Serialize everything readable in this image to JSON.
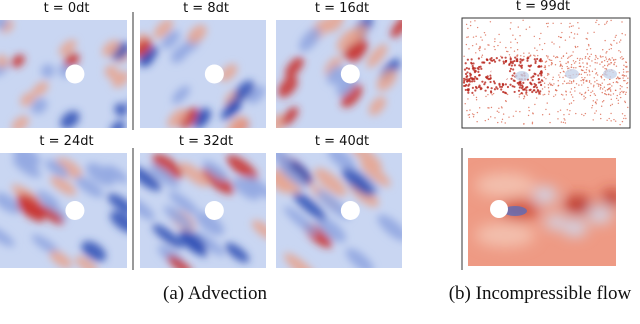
{
  "advection": {
    "panels": [
      {
        "label": "t = 0dt"
      },
      {
        "label": "t = 8dt"
      },
      {
        "label": "t = 16dt"
      },
      {
        "label": "t = 24dt"
      },
      {
        "label": "t = 32dt"
      },
      {
        "label": "t = 40dt"
      }
    ],
    "caption": "(a) Advection"
  },
  "incompressible": {
    "label": "t = 99dt",
    "caption": "(b) Incompressible flow"
  }
}
